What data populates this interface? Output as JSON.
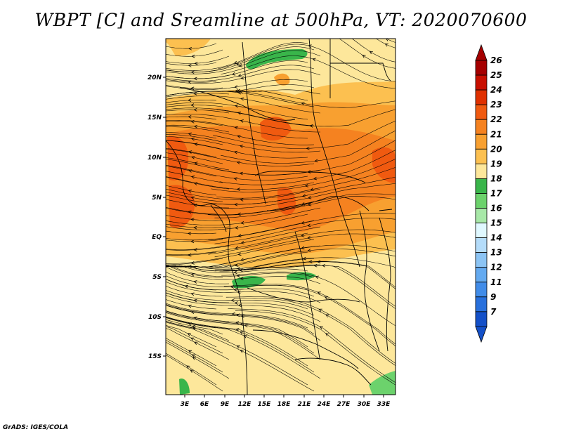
{
  "title": "WBPT [C] and Sreamline at 500hPa, VT: 2020070600",
  "credit": "GrADS: IGES/COLA",
  "lat_labels": [
    "20N",
    "15N",
    "10N",
    "5N",
    "EQ",
    "5S",
    "10S",
    "15S"
  ],
  "lon_labels": [
    "3E",
    "6E",
    "9E",
    "12E",
    "15E",
    "18E",
    "21E",
    "24E",
    "27E",
    "30E",
    "33E"
  ],
  "colorbar": {
    "labels": [
      "26",
      "25",
      "24",
      "23",
      "22",
      "21",
      "20",
      "19",
      "18",
      "17",
      "16",
      "15",
      "14",
      "13",
      "12",
      "11",
      "9",
      "7"
    ],
    "colors": [
      "#a50000",
      "#c80f00",
      "#e03000",
      "#f05a10",
      "#f58220",
      "#f8a030",
      "#fcc050",
      "#fde79b",
      "#39b54a",
      "#6cd26c",
      "#a8e8a8",
      "#e0f8ff",
      "#b4dcfa",
      "#8cc4f4",
      "#64aaf0",
      "#418ce8",
      "#2870dc",
      "#1450c8"
    ],
    "top_arrow_color": "#a50000",
    "bottom_arrow_color": "#1450c8"
  }
}
